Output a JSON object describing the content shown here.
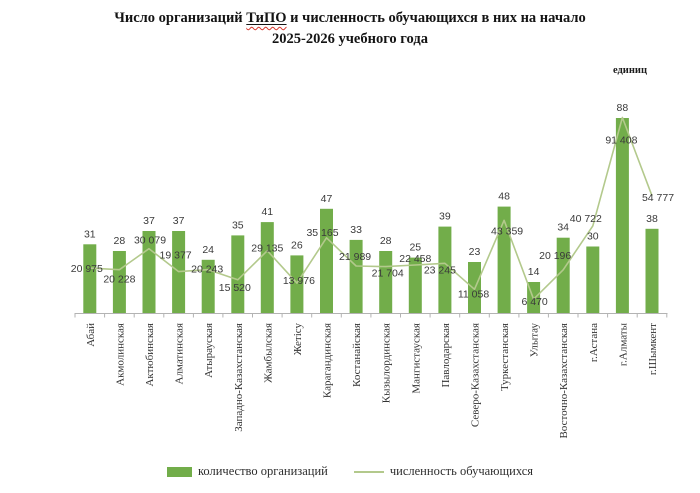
{
  "title": {
    "part1": "Число организаций ",
    "highlight": "ТиПО",
    "part2": " и численность обучающихся в них на начало",
    "line2": "2025-2026 учебного года"
  },
  "unit_label": "единиц",
  "legend": {
    "items": [
      {
        "label": "количество организаций",
        "swatch": "bar"
      },
      {
        "label": "численность обучающихся",
        "swatch": "line"
      }
    ]
  },
  "colors": {
    "bar": "#72ad4a",
    "line": "#b3c98c",
    "number_label": "#3a3a3a",
    "axis": "#b3b3b3",
    "title_text": "#141414",
    "spellcheck_wave": "#d6352b"
  },
  "chart_data": {
    "type": "bar+line",
    "title": "Число организаций ТиПО и численность обучающихся в них на начало 2025-2026 учебного года",
    "unit_label": "единиц",
    "grid": false,
    "legend_position": "bottom",
    "categories": [
      "Абай",
      "Акмолинская",
      "Актюбинская",
      "Алматинская",
      "Атырауская",
      "Западно-Казахстанская",
      "Жамбылская",
      "Жетісу",
      "Карагандинская",
      "Костанайская",
      "Кызылординская",
      "Мангистауская",
      "Павлодарская",
      "Северо-Казахстанская",
      "Туркестанская",
      "Улытау",
      "Восточно-Казахстанская",
      "г.Астана",
      "г.Алматы",
      "г.Шымкент"
    ],
    "series": [
      {
        "name": "количество организаций",
        "type": "bar",
        "values": [
          31,
          28,
          37,
          37,
          24,
          35,
          41,
          26,
          47,
          33,
          28,
          25,
          39,
          23,
          48,
          14,
          34,
          30,
          88,
          38
        ]
      },
      {
        "name": "численность обучающихся",
        "type": "line",
        "values": [
          20975,
          20228,
          30079,
          19377,
          20243,
          15520,
          29135,
          13976,
          35165,
          21989,
          21704,
          22458,
          23245,
          11058,
          43359,
          6470,
          20196,
          40722,
          91408,
          54777
        ],
        "labels": [
          "20 975",
          "20 228",
          "30 079",
          "19 377",
          "20 243",
          "15 520",
          "29 135",
          "13 976",
          "35 165",
          "21 989",
          "21 704",
          "22 458",
          "23 245",
          "11 058",
          "43 359",
          "6 470",
          "20 196",
          "40 722",
          "91 408",
          "54 777"
        ]
      }
    ]
  }
}
